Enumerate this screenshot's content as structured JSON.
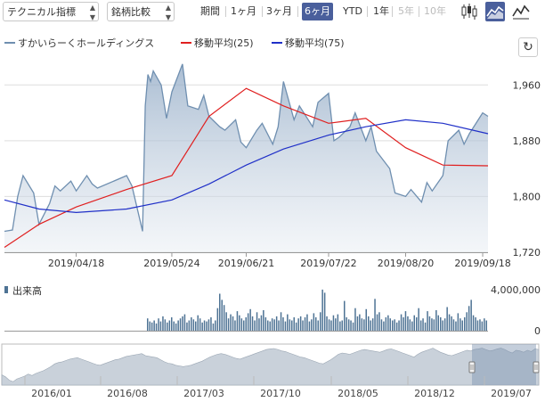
{
  "toolbar": {
    "indicator_label": "テクニカル指標",
    "compare_label": "銘柄比較",
    "period_label": "期間",
    "periods": [
      "1ヶ月",
      "3ヶ月",
      "6ヶ月",
      "YTD",
      "1年",
      "5年",
      "10年"
    ],
    "active_period": "6ヶ月",
    "disabled_periods": [
      "5年",
      "10年"
    ],
    "chart_type_icons": [
      "candlestick-icon",
      "area-chart-icon"
    ]
  },
  "legend": [
    {
      "label": "すかいらーくホールディングス",
      "color": "#6f8fb0"
    },
    {
      "label": "移動平均(25)",
      "color": "#e02020"
    },
    {
      "label": "移動平均(75)",
      "color": "#2030c8"
    }
  ],
  "refresh_icon": "↻",
  "volume_label": "出来高",
  "colors": {
    "price": "#6f8fb0",
    "ma25": "#e02020",
    "ma75": "#2030c8",
    "volume": "#4e7394",
    "active": "#4a5f9c"
  },
  "chart_data": [
    {
      "type": "line",
      "xlabels": [
        "2019/04/18",
        "2019/05/24",
        "2019/06/21",
        "2019/07/22",
        "2019/08/20",
        "2019/09/18"
      ],
      "x_range": [
        "2019/03/22",
        "2019/09/20"
      ],
      "ylim": [
        1720,
        2000
      ],
      "yticks": [
        1720,
        1800,
        1880,
        1960
      ],
      "series": [
        {
          "name": "すかいらーくホールディングス",
          "x": [
            "2019/03/22",
            "2019/03/25",
            "2019/03/27",
            "2019/03/29",
            "2019/04/02",
            "2019/04/04",
            "2019/04/08",
            "2019/04/10",
            "2019/04/12",
            "2019/04/16",
            "2019/04/18",
            "2019/04/22",
            "2019/04/24",
            "2019/04/26",
            "2019/05/07",
            "2019/05/09",
            "2019/05/13",
            "2019/05/14",
            "2019/05/15",
            "2019/05/16",
            "2019/05/17",
            "2019/05/20",
            "2019/05/22",
            "2019/05/24",
            "2019/05/28",
            "2019/05/30",
            "2019/06/03",
            "2019/06/05",
            "2019/06/07",
            "2019/06/11",
            "2019/06/13",
            "2019/06/17",
            "2019/06/19",
            "2019/06/21",
            "2019/06/25",
            "2019/06/27",
            "2019/07/01",
            "2019/07/03",
            "2019/07/05",
            "2019/07/09",
            "2019/07/11",
            "2019/07/16",
            "2019/07/18",
            "2019/07/22",
            "2019/07/24",
            "2019/07/26",
            "2019/07/30",
            "2019/08/01",
            "2019/08/05",
            "2019/08/07",
            "2019/08/09",
            "2019/08/14",
            "2019/08/16",
            "2019/08/20",
            "2019/08/22",
            "2019/08/26",
            "2019/08/28",
            "2019/08/30",
            "2019/09/03",
            "2019/09/05",
            "2019/09/09",
            "2019/09/11",
            "2019/09/13",
            "2019/09/18",
            "2019/09/20"
          ],
          "y": [
            1750,
            1752,
            1800,
            1830,
            1805,
            1760,
            1790,
            1815,
            1808,
            1822,
            1808,
            1830,
            1818,
            1812,
            1830,
            1815,
            1750,
            1930,
            1975,
            1965,
            1980,
            1960,
            1912,
            1950,
            1990,
            1930,
            1925,
            1945,
            1915,
            1900,
            1895,
            1910,
            1878,
            1870,
            1895,
            1905,
            1875,
            1900,
            1965,
            1910,
            1930,
            1900,
            1935,
            1948,
            1880,
            1885,
            1900,
            1920,
            1880,
            1900,
            1865,
            1840,
            1805,
            1800,
            1810,
            1792,
            1820,
            1808,
            1830,
            1880,
            1895,
            1875,
            1890,
            1920,
            1915
          ]
        },
        {
          "name": "移動平均(25)",
          "x": [
            "2019/03/22",
            "2019/04/04",
            "2019/04/18",
            "2019/05/07",
            "2019/05/24",
            "2019/06/07",
            "2019/06/21",
            "2019/07/05",
            "2019/07/22",
            "2019/08/05",
            "2019/08/20",
            "2019/09/03",
            "2019/09/20"
          ],
          "y": [
            1727,
            1760,
            1785,
            1810,
            1830,
            1915,
            1955,
            1930,
            1905,
            1912,
            1870,
            1845,
            1844
          ]
        },
        {
          "name": "移動平均(75)",
          "x": [
            "2019/03/22",
            "2019/04/04",
            "2019/04/18",
            "2019/05/07",
            "2019/05/24",
            "2019/06/07",
            "2019/06/21",
            "2019/07/05",
            "2019/07/22",
            "2019/08/05",
            "2019/08/20",
            "2019/09/03",
            "2019/09/20"
          ],
          "y": [
            1795,
            1782,
            1777,
            1782,
            1795,
            1818,
            1845,
            1868,
            1888,
            1900,
            1910,
            1905,
            1890
          ]
        }
      ]
    },
    {
      "type": "bar",
      "name": "出来高",
      "yticks": [
        0,
        4000000
      ],
      "values": [
        1.2,
        0.9,
        0.8,
        1.0,
        0.7,
        1.2,
        0.9,
        1.4,
        1.1,
        0.8,
        1.0,
        1.3,
        0.9,
        0.7,
        1.0,
        1.2,
        1.4,
        1.6,
        0.8,
        1.0,
        1.3,
        1.1,
        0.9,
        1.5,
        1.2,
        0.8,
        1.0,
        0.9,
        1.1,
        1.3,
        0.7,
        1.0,
        2.2,
        3.6,
        3.0,
        2.5,
        1.8,
        1.2,
        1.6,
        1.4,
        1.0,
        1.9,
        1.5,
        1.2,
        1.0,
        1.3,
        1.7,
        2.1,
        1.4,
        1.0,
        1.8,
        1.2,
        1.5,
        2.0,
        1.3,
        1.0,
        0.9,
        1.2,
        1.1,
        1.4,
        1.0,
        1.8,
        1.3,
        0.9,
        1.6,
        1.1,
        1.0,
        1.3,
        0.8,
        1.2,
        1.4,
        1.0,
        1.3,
        1.6,
        0.9,
        1.1,
        1.7,
        1.3,
        1.0,
        1.8,
        4.0,
        3.7,
        1.4,
        1.1,
        1.0,
        1.5,
        1.2,
        1.6,
        0.9,
        1.0,
        2.9,
        1.3,
        1.1,
        1.0,
        0.8,
        2.2,
        1.4,
        1.6,
        1.2,
        1.1,
        2.1,
        1.4,
        1.0,
        1.2,
        3.1,
        1.6,
        1.8,
        1.1,
        0.9,
        1.3,
        1.5,
        1.2,
        1.0,
        1.1,
        0.8,
        1.0,
        1.6,
        1.3,
        1.9,
        1.4,
        1.1,
        0.9,
        1.5,
        1.3,
        2.2,
        1.0,
        1.2,
        0.8,
        1.9,
        1.4,
        1.2,
        1.1,
        2.0,
        1.5,
        1.3,
        1.0,
        1.2,
        2.3,
        1.6,
        1.4,
        1.1,
        0.9,
        1.7,
        1.2,
        1.0,
        1.3,
        1.8,
        2.4,
        3.0,
        1.5,
        1.3,
        1.0,
        1.1,
        0.9,
        1.2,
        1.0
      ],
      "unit_scale": 1000000
    },
    {
      "type": "area",
      "name": "navigator",
      "xlabels": [
        "2016/01",
        "2016/08",
        "2017/03",
        "2017/10",
        "2018/05",
        "2018/12",
        "2019/07"
      ],
      "values": [
        1600,
        1570,
        1520,
        1500,
        1540,
        1560,
        1580,
        1610,
        1590,
        1620,
        1640,
        1660,
        1690,
        1720,
        1760,
        1780,
        1790,
        1810,
        1830,
        1840,
        1850,
        1830,
        1810,
        1790,
        1770,
        1750,
        1740,
        1760,
        1780,
        1800,
        1820,
        1830,
        1850,
        1870,
        1880,
        1890,
        1900,
        1910,
        1880,
        1870,
        1860,
        1850,
        1820,
        1790,
        1770,
        1760,
        1740,
        1730,
        1720,
        1730,
        1740,
        1760,
        1780,
        1800,
        1830,
        1860,
        1880,
        1900,
        1910,
        1900,
        1880,
        1860,
        1840,
        1830,
        1850,
        1870,
        1890,
        1910,
        1930,
        1950,
        1970,
        1980,
        1985,
        1970,
        1950,
        1940,
        1920,
        1900,
        1880,
        1860,
        1850,
        1830,
        1810,
        1790,
        1770,
        1760,
        1790,
        1820,
        1860,
        1900,
        1920,
        1910,
        1900,
        1920,
        1940,
        1960,
        1970,
        1960,
        1950,
        1940,
        1930,
        1950,
        1970,
        1980,
        1960,
        1940,
        1920,
        1900,
        1880,
        1860,
        1900,
        1930,
        1950,
        1970,
        1990,
        1960,
        1930,
        1910,
        1890,
        1880,
        1900,
        1920,
        1940,
        1960,
        1950,
        1970,
        1980,
        1990,
        1970,
        1950,
        1960,
        1980,
        1990,
        1970,
        1940,
        1920,
        1960,
        1950,
        1930,
        1960,
        1940,
        1980,
        1970
      ]
    }
  ]
}
